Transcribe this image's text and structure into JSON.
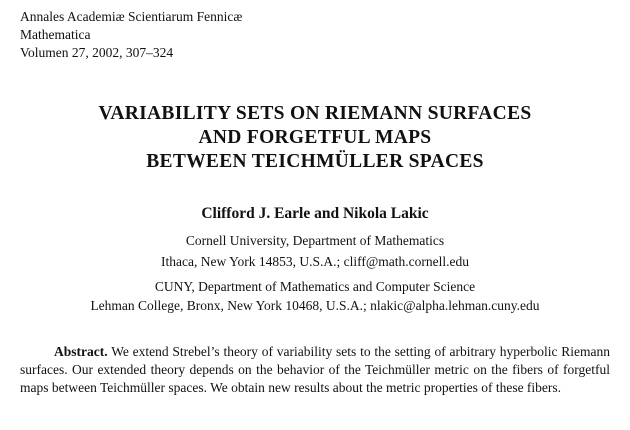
{
  "journal": {
    "line1": "Annales Academiæ Scientiarum Fennicæ",
    "line2": "Mathematica",
    "line3": "Volumen 27, 2002, 307–324"
  },
  "title": {
    "line1": "VARIABILITY SETS ON RIEMANN SURFACES",
    "line2": "AND FORGETFUL MAPS",
    "line3": "BETWEEN TEICHMÜLLER SPACES"
  },
  "authors": "Clifford J. Earle and Nikola Lakic",
  "affiliations": [
    {
      "line1": "Cornell University, Department of Mathematics",
      "line2": "Ithaca, New York 14853, U.S.A.; cliff@math.cornell.edu"
    },
    {
      "line1": "CUNY, Department of Mathematics and Computer Science",
      "line2": "Lehman College, Bronx, New York 10468, U.S.A.; nlakic@alpha.lehman.cuny.edu"
    }
  ],
  "abstract": {
    "label": "Abstract.",
    "text": "We extend Strebel’s theory of variability sets to the setting of arbitrary hyperbolic Riemann surfaces. Our extended theory depends on the behavior of the Teichmüller metric on the fibers of forgetful maps between Teichmüller spaces.  We obtain new results about the metric properties of these fibers."
  }
}
